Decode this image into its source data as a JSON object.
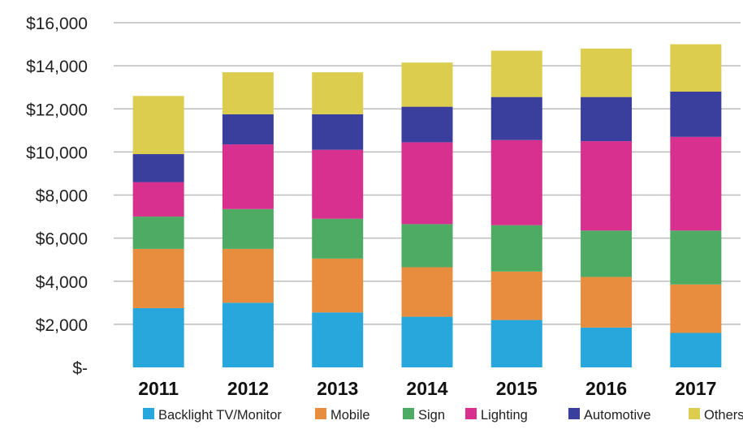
{
  "chart_data": {
    "type": "bar",
    "stacked": true,
    "categories": [
      "2011",
      "2012",
      "2013",
      "2014",
      "2015",
      "2016",
      "2017"
    ],
    "series": [
      {
        "name": "Backlight TV/Monitor",
        "color": "#27a7dc",
        "values": [
          2750,
          3000,
          2550,
          2350,
          2200,
          1850,
          1600
        ]
      },
      {
        "name": "Mobile",
        "color": "#e78d3d",
        "values": [
          2750,
          2500,
          2500,
          2300,
          2250,
          2350,
          2250
        ]
      },
      {
        "name": "Sign",
        "color": "#4eab63",
        "values": [
          1500,
          1850,
          1850,
          2000,
          2150,
          2150,
          2500
        ]
      },
      {
        "name": "Lighting",
        "color": "#d8308f",
        "values": [
          1600,
          3000,
          3200,
          3800,
          3950,
          4150,
          4350
        ]
      },
      {
        "name": "Automotive",
        "color": "#3a3f9e",
        "values": [
          1300,
          1400,
          1650,
          1650,
          2000,
          2050,
          2100
        ]
      },
      {
        "name": "Others",
        "color": "#dccd4e",
        "values": [
          2700,
          1950,
          1950,
          2050,
          2150,
          2250,
          2200
        ]
      }
    ],
    "yticks": [
      "$-",
      "$2,000",
      "$4,000",
      "$6,000",
      "$8,000",
      "$10,000",
      "$12,000",
      "$14,000",
      "$16,000"
    ],
    "ylim": [
      0,
      16000
    ],
    "grid": true,
    "legend": "bottom",
    "title": "",
    "xlabel": "",
    "ylabel": ""
  }
}
